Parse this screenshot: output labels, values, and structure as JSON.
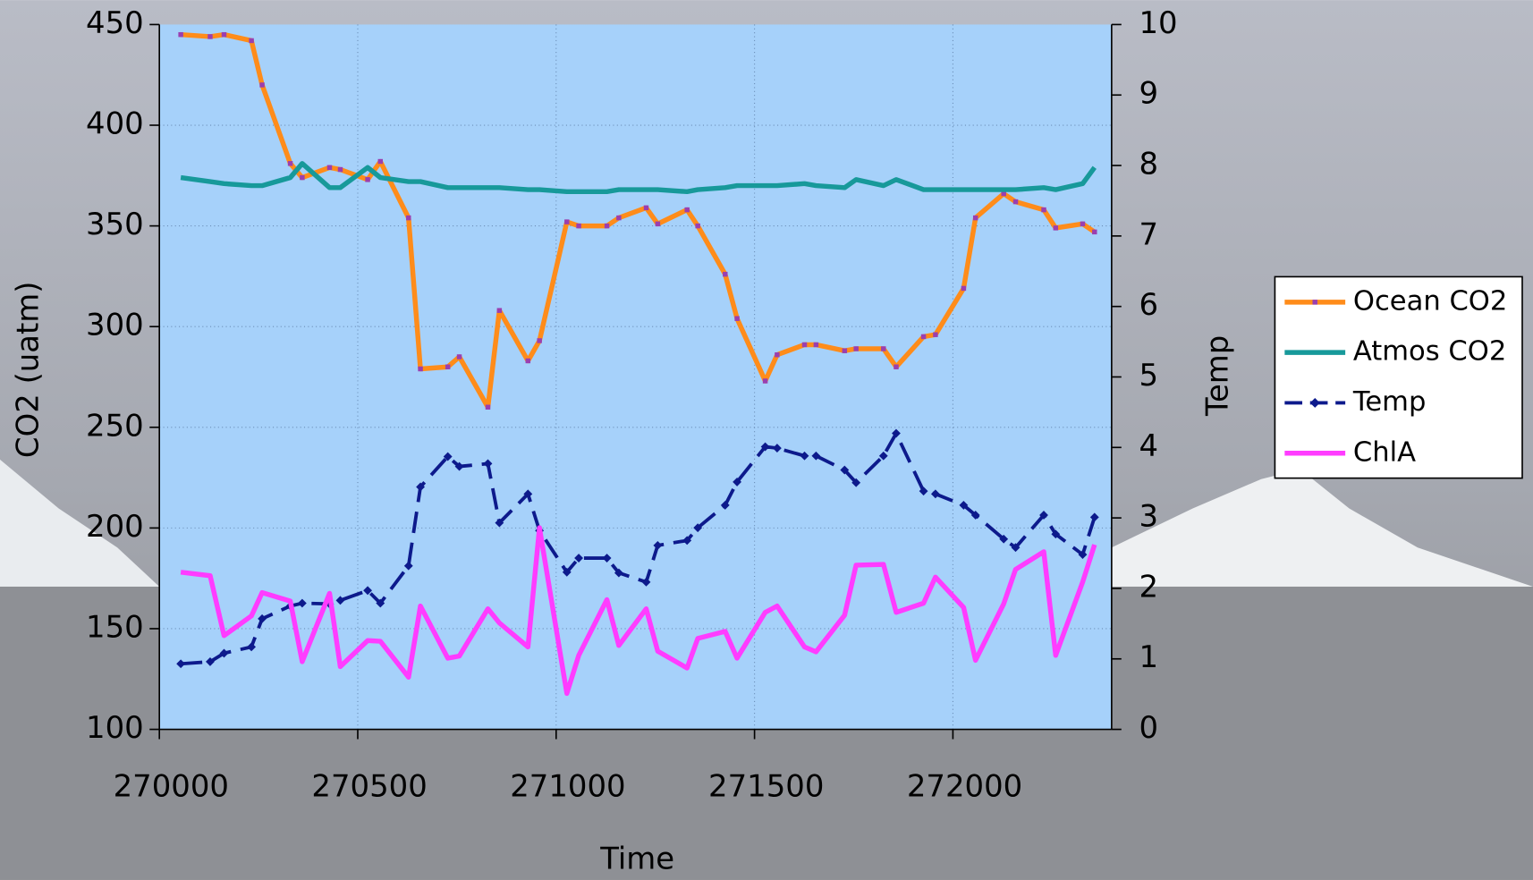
{
  "chart_data": {
    "type": "line",
    "xlabel": "Time",
    "ylabel": "CO2 (uatm)",
    "y2label": "Temp",
    "xlim": [
      270000,
      272400
    ],
    "xticks": [
      270000,
      270500,
      271000,
      271500,
      272000
    ],
    "ylim": [
      100,
      450
    ],
    "yticks": [
      100,
      150,
      200,
      250,
      300,
      350,
      400,
      450
    ],
    "y2lim": [
      0,
      10
    ],
    "y2ticks": [
      0,
      1,
      2,
      3,
      4,
      5,
      6,
      7,
      8,
      9,
      10
    ],
    "grid": true,
    "legend": "right",
    "x": [
      270054,
      270128,
      270163,
      270232,
      270259,
      270330,
      270360,
      270429,
      270456,
      270525,
      270557,
      270628,
      270658,
      270727,
      270756,
      270828,
      270857,
      270929,
      270958,
      271027,
      271057,
      271128,
      271158,
      271227,
      271256,
      271330,
      271357,
      271426,
      271456,
      271527,
      271557,
      271626,
      271655,
      271727,
      271756,
      271825,
      271857,
      271926,
      271956,
      272027,
      272057,
      272128,
      272158,
      272229,
      272259,
      272327,
      272357
    ],
    "series": [
      {
        "name": "Ocean CO2",
        "color": "#ff8c1a",
        "marker": "square",
        "marker_color": "#9a3fb0",
        "dashed": false,
        "values": [
          445,
          444,
          445,
          442,
          420,
          381,
          374,
          379,
          378,
          373,
          382,
          354,
          279,
          280,
          285,
          260,
          308,
          283,
          293,
          352,
          350,
          350,
          354,
          359,
          351,
          358,
          350,
          326,
          304,
          273,
          286,
          291,
          291,
          288,
          289,
          289,
          280,
          295,
          296,
          319,
          354,
          366,
          362,
          358,
          349,
          351,
          347
        ]
      },
      {
        "name": "Atmos CO2",
        "color": "#17999a",
        "marker": "none",
        "dashed": false,
        "values": [
          374,
          372,
          371,
          370,
          370,
          374,
          381,
          369,
          369,
          379,
          374,
          372,
          372,
          369,
          369,
          369,
          369,
          368,
          368,
          367,
          367,
          367,
          368,
          368,
          368,
          367,
          368,
          369,
          370,
          370,
          370,
          371,
          370,
          369,
          373,
          370,
          373,
          368,
          368,
          368,
          368,
          368,
          368,
          369,
          368,
          371,
          379
        ]
      },
      {
        "name": "Temp",
        "color": "#0d1a8c",
        "marker": "diamond",
        "marker_color": "#0d1a8c",
        "dashed": true,
        "axis": "y2",
        "values": [
          0.93,
          0.96,
          1.08,
          1.17,
          1.57,
          1.75,
          1.79,
          1.78,
          1.83,
          1.97,
          1.79,
          2.32,
          3.44,
          3.87,
          3.73,
          3.77,
          2.93,
          3.34,
          2.82,
          2.23,
          2.43,
          2.43,
          2.22,
          2.09,
          2.61,
          2.68,
          2.86,
          3.18,
          3.51,
          4.01,
          3.99,
          3.88,
          3.88,
          3.68,
          3.5,
          3.88,
          4.2,
          3.38,
          3.34,
          3.18,
          3.04,
          2.7,
          2.58,
          3.04,
          2.77,
          2.48,
          3.01
        ]
      },
      {
        "name": "ChlA",
        "color": "#ff3cff",
        "marker": "none",
        "dashed": false,
        "axis": "y2",
        "values": [
          2.23,
          2.18,
          1.33,
          1.61,
          1.94,
          1.82,
          0.96,
          1.93,
          0.89,
          1.26,
          1.25,
          0.74,
          1.75,
          1.01,
          1.04,
          1.71,
          1.51,
          1.17,
          2.86,
          0.51,
          1.05,
          1.84,
          1.19,
          1.71,
          1.11,
          0.87,
          1.29,
          1.39,
          1.01,
          1.66,
          1.75,
          1.17,
          1.1,
          1.62,
          2.33,
          2.34,
          1.66,
          1.79,
          2.16,
          1.73,
          0.98,
          1.78,
          2.27,
          2.52,
          1.05,
          2.09,
          2.62
        ]
      }
    ]
  }
}
